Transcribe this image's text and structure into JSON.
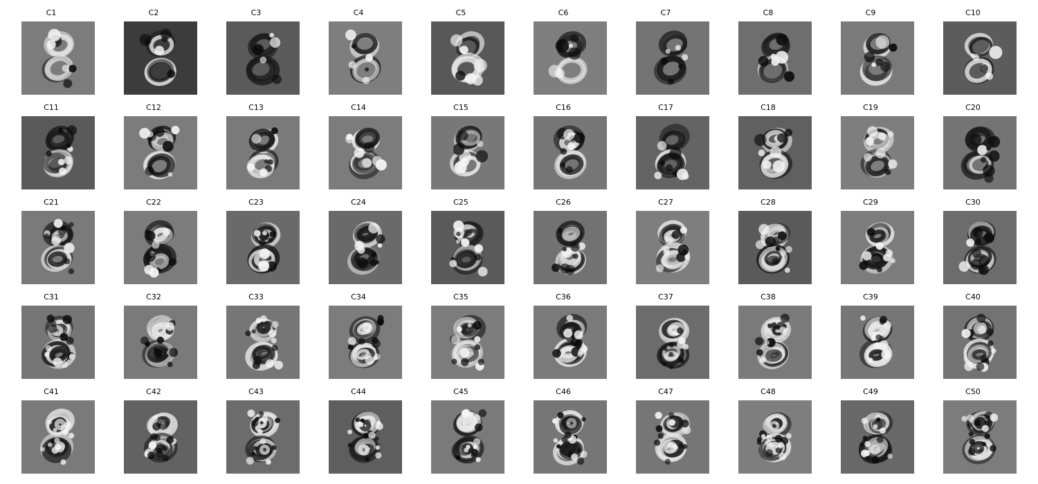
{
  "figure": {
    "rows": 5,
    "cols": 10,
    "panels": [
      {
        "title": "C1",
        "bg": "#7c7c7c"
      },
      {
        "title": "C2",
        "bg": "#3c3c3c"
      },
      {
        "title": "C3",
        "bg": "#5a5a5a"
      },
      {
        "title": "C4",
        "bg": "#7e7e7e"
      },
      {
        "title": "C5",
        "bg": "#585858"
      },
      {
        "title": "C6",
        "bg": "#7e7e7e"
      },
      {
        "title": "C7",
        "bg": "#747474"
      },
      {
        "title": "C8",
        "bg": "#6e6e6e"
      },
      {
        "title": "C9",
        "bg": "#7a7a7a"
      },
      {
        "title": "C10",
        "bg": "#5c5c5c"
      },
      {
        "title": "C11",
        "bg": "#5a5a5a"
      },
      {
        "title": "C12",
        "bg": "#7c7c7c"
      },
      {
        "title": "C13",
        "bg": "#7a7a7a"
      },
      {
        "title": "C14",
        "bg": "#7c7c7c"
      },
      {
        "title": "C15",
        "bg": "#787878"
      },
      {
        "title": "C16",
        "bg": "#767676"
      },
      {
        "title": "C17",
        "bg": "#646464"
      },
      {
        "title": "C18",
        "bg": "#606060"
      },
      {
        "title": "C19",
        "bg": "#7e7e7e"
      },
      {
        "title": "C20",
        "bg": "#747474"
      },
      {
        "title": "C21",
        "bg": "#7a7a7a"
      },
      {
        "title": "C22",
        "bg": "#7c7c7c"
      },
      {
        "title": "C23",
        "bg": "#6a6a6a"
      },
      {
        "title": "C24",
        "bg": "#6a6a6a"
      },
      {
        "title": "C25",
        "bg": "#5a5a5a"
      },
      {
        "title": "C26",
        "bg": "#727272"
      },
      {
        "title": "C27",
        "bg": "#7e7e7e"
      },
      {
        "title": "C28",
        "bg": "#5a5a5a"
      },
      {
        "title": "C29",
        "bg": "#7c7c7c"
      },
      {
        "title": "C30",
        "bg": "#6c6c6c"
      },
      {
        "title": "C31",
        "bg": "#767676"
      },
      {
        "title": "C32",
        "bg": "#7a7a7a"
      },
      {
        "title": "C33",
        "bg": "#767676"
      },
      {
        "title": "C34",
        "bg": "#7c7c7c"
      },
      {
        "title": "C35",
        "bg": "#7c7c7c"
      },
      {
        "title": "C36",
        "bg": "#7a7a7a"
      },
      {
        "title": "C37",
        "bg": "#6c6c6c"
      },
      {
        "title": "C38",
        "bg": "#7a7a7a"
      },
      {
        "title": "C39",
        "bg": "#767676"
      },
      {
        "title": "C40",
        "bg": "#737373"
      },
      {
        "title": "C41",
        "bg": "#7a7a7a"
      },
      {
        "title": "C42",
        "bg": "#626262"
      },
      {
        "title": "C43",
        "bg": "#6c6c6c"
      },
      {
        "title": "C44",
        "bg": "#5e5e5e"
      },
      {
        "title": "C45",
        "bg": "#7a7a7a"
      },
      {
        "title": "C46",
        "bg": "#767676"
      },
      {
        "title": "C47",
        "bg": "#767676"
      },
      {
        "title": "C48",
        "bg": "#7e7e7e"
      },
      {
        "title": "C49",
        "bg": "#686868"
      },
      {
        "title": "C50",
        "bg": "#7c7c7c"
      }
    ]
  }
}
